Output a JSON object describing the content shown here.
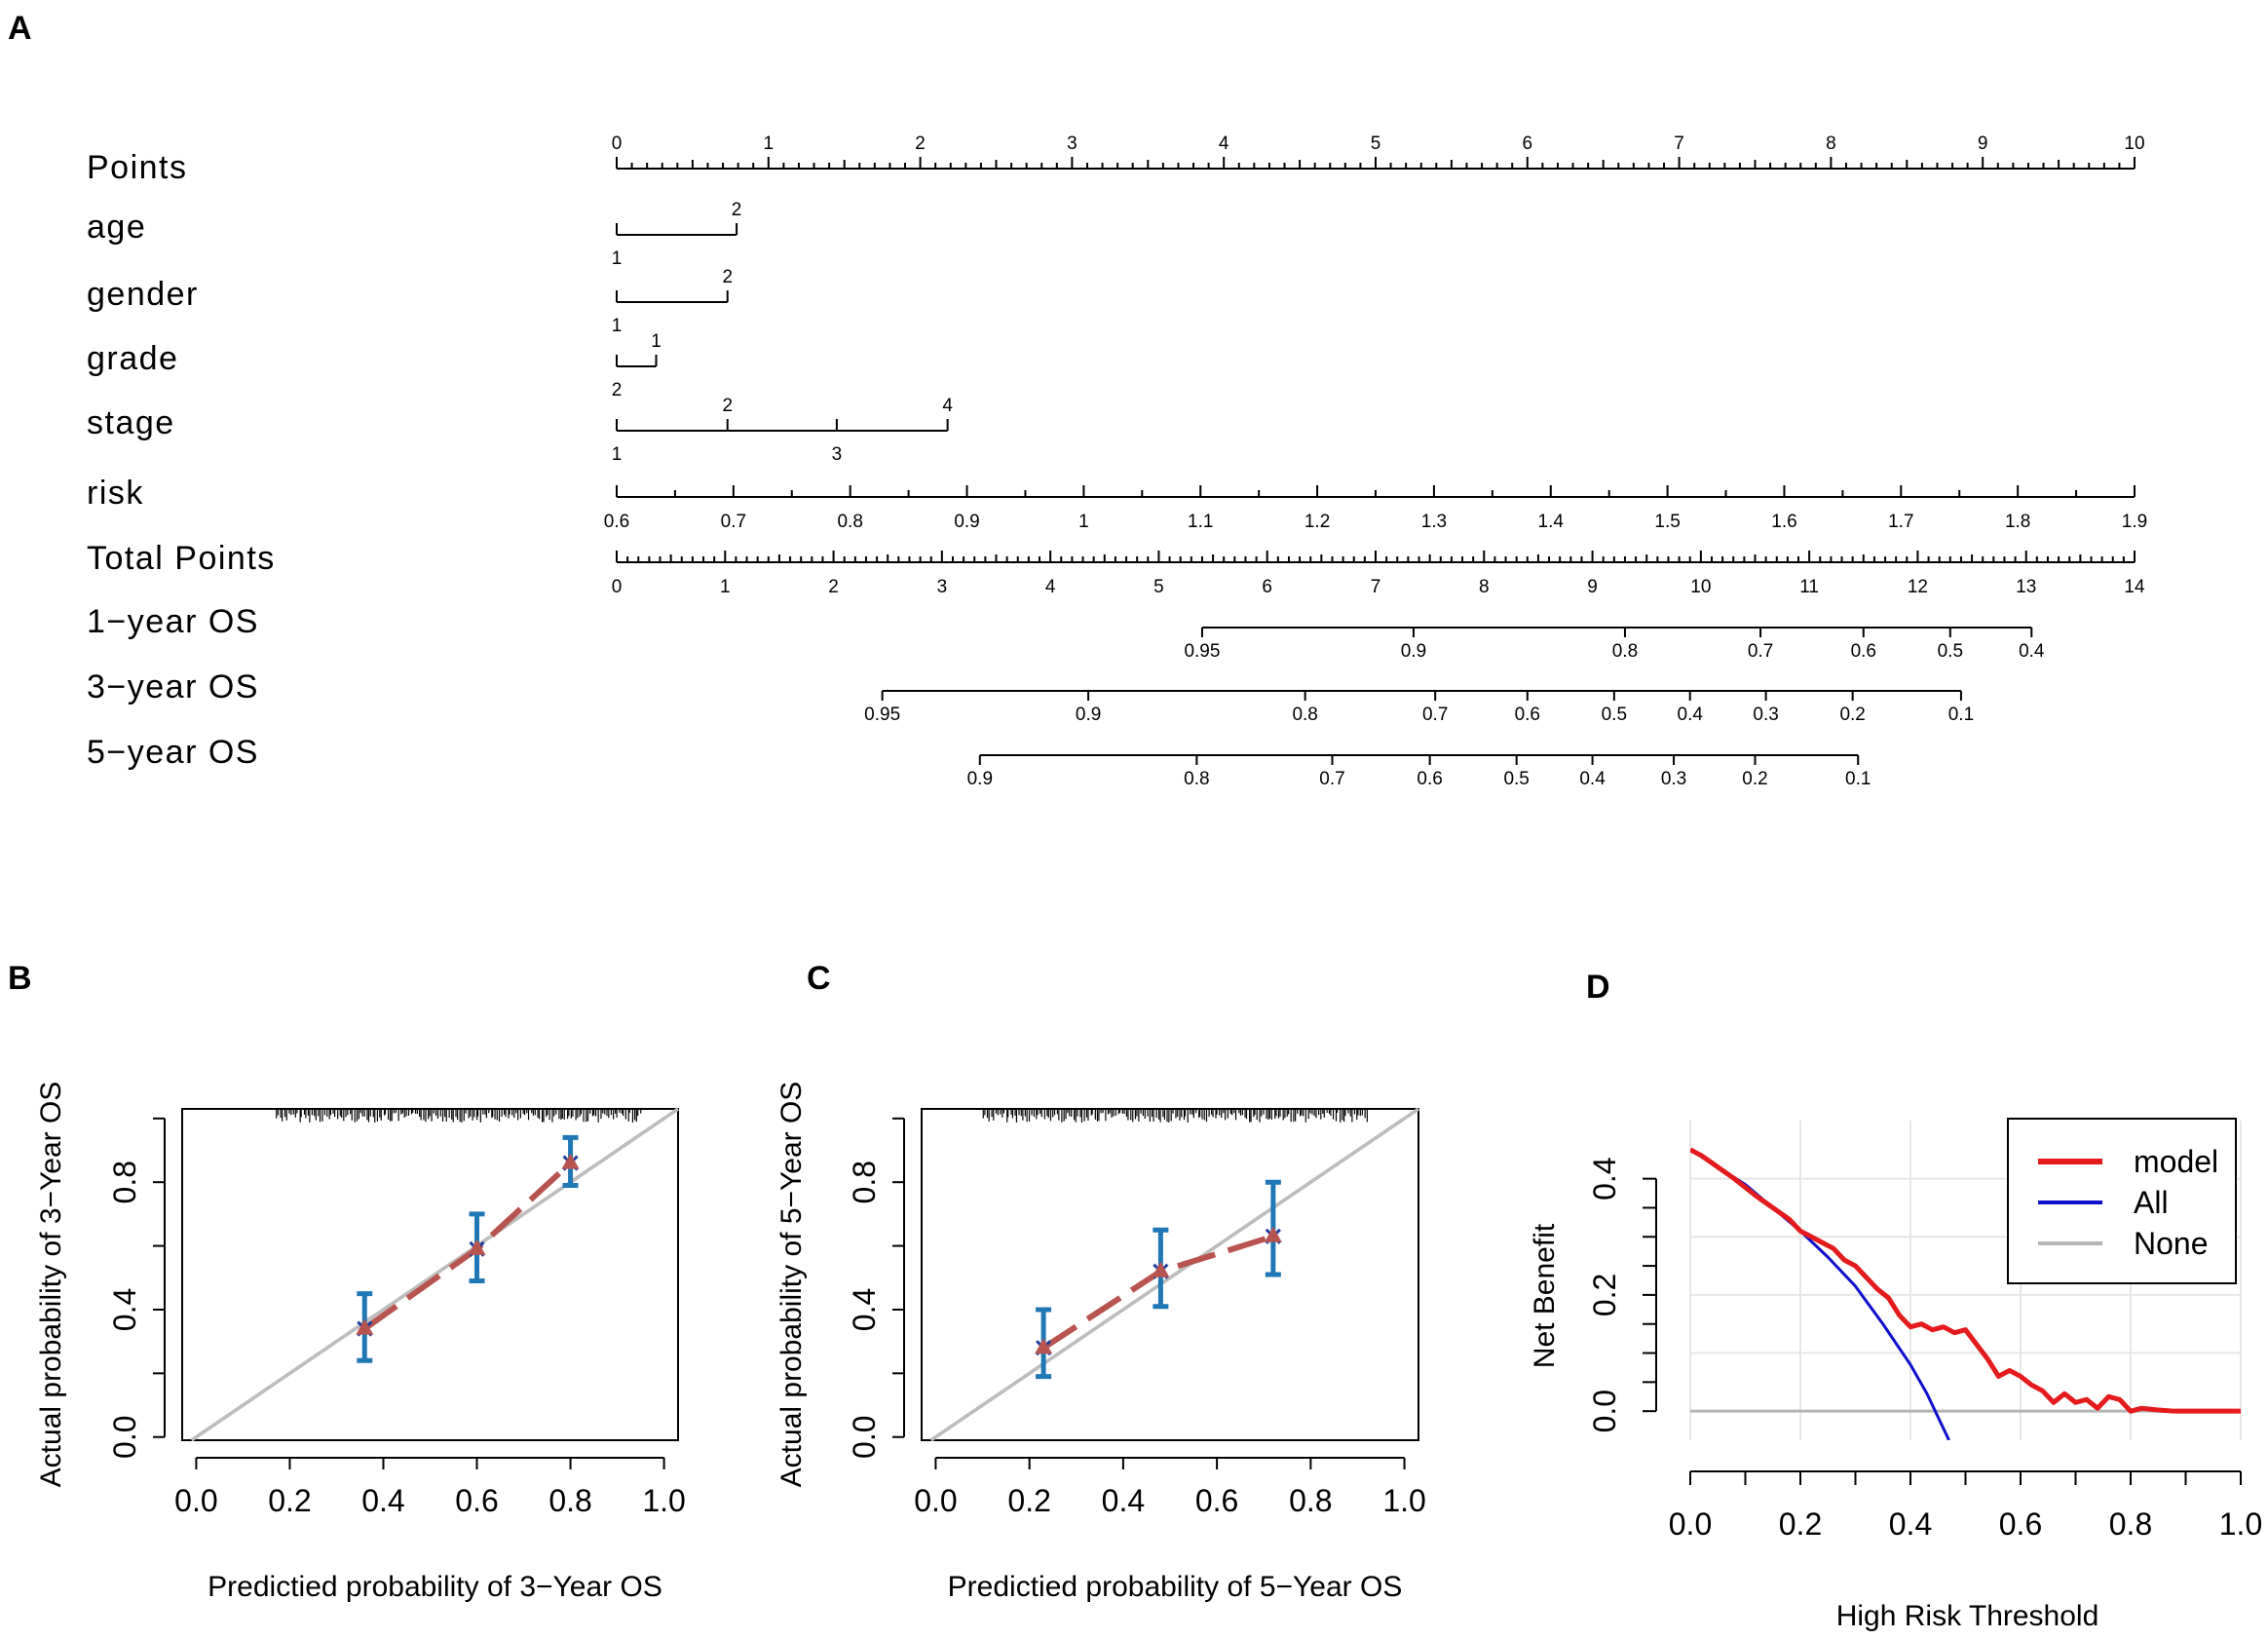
{
  "panel_labels": {
    "a": "A",
    "b": "B",
    "c": "C",
    "d": "D"
  },
  "colors": {
    "axis": "#000000",
    "calib_diag": "#BDBDBD",
    "calib_line": "#B85450",
    "calib_err": "#1F77B4",
    "calib_marker": "#1F3F9F",
    "dca_model": "#E41A1C",
    "dca_all": "#1010CC",
    "dca_none": "#B5B5B5",
    "grid": "#E6E6E6"
  },
  "chart_data": [
    {
      "panel": "A",
      "type": "nomogram",
      "rows": [
        {
          "label": "Points",
          "kind": "points",
          "range": [
            0,
            10
          ],
          "ticks": [
            "0",
            "1",
            "2",
            "3",
            "4",
            "5",
            "6",
            "7",
            "8",
            "9",
            "10"
          ]
        },
        {
          "label": "age",
          "kind": "factor",
          "levels": [
            {
              "value": "1",
              "points": 0
            },
            {
              "value": "2",
              "points": 0.79
            }
          ]
        },
        {
          "label": "gender",
          "kind": "factor",
          "levels": [
            {
              "value": "1",
              "points": 0
            },
            {
              "value": "2",
              "points": 0.73
            }
          ]
        },
        {
          "label": "grade",
          "kind": "factor",
          "levels": [
            {
              "value": "2",
              "points": 0
            },
            {
              "value": "1",
              "points": 0.26
            }
          ]
        },
        {
          "label": "stage",
          "kind": "factor",
          "levels": [
            {
              "value": "1",
              "points": 0
            },
            {
              "value": "2",
              "points": 0.73
            },
            {
              "value": "3",
              "points": 1.45
            },
            {
              "value": "4",
              "points": 2.18
            }
          ]
        },
        {
          "label": "risk",
          "kind": "continuous",
          "range": [
            0.6,
            1.9
          ],
          "ticks": [
            "0.6",
            "0.7",
            "0.8",
            "0.9",
            "1",
            "1.1",
            "1.2",
            "1.3",
            "1.4",
            "1.5",
            "1.6",
            "1.7",
            "1.8",
            "1.9"
          ]
        },
        {
          "label": "Total Points",
          "kind": "total",
          "range": [
            0,
            14
          ],
          "ticks": [
            "0",
            "1",
            "2",
            "3",
            "4",
            "5",
            "6",
            "7",
            "8",
            "9",
            "10",
            "11",
            "12",
            "13",
            "14"
          ]
        },
        {
          "label": "1−year OS",
          "kind": "outcome",
          "ticks": [
            {
              "label": "0.95",
              "total": 5.4
            },
            {
              "label": "0.9",
              "total": 7.35
            },
            {
              "label": "0.8",
              "total": 9.3
            },
            {
              "label": "0.7",
              "total": 10.55
            },
            {
              "label": "0.6",
              "total": 11.5
            },
            {
              "label": "0.5",
              "total": 12.3
            },
            {
              "label": "0.4",
              "total": 13.05
            }
          ]
        },
        {
          "label": "3−year OS",
          "kind": "outcome",
          "ticks": [
            {
              "label": "0.95",
              "total": 2.45
            },
            {
              "label": "0.9",
              "total": 4.35
            },
            {
              "label": "0.8",
              "total": 6.35
            },
            {
              "label": "0.7",
              "total": 7.55
            },
            {
              "label": "0.6",
              "total": 8.4
            },
            {
              "label": "0.5",
              "total": 9.2
            },
            {
              "label": "0.4",
              "total": 9.9
            },
            {
              "label": "0.3",
              "total": 10.6
            },
            {
              "label": "0.2",
              "total": 11.4
            },
            {
              "label": "0.1",
              "total": 12.4
            }
          ]
        },
        {
          "label": "5−year OS",
          "kind": "outcome",
          "ticks": [
            {
              "label": "0.9",
              "total": 3.35
            },
            {
              "label": "0.8",
              "total": 5.35
            },
            {
              "label": "0.7",
              "total": 6.6
            },
            {
              "label": "0.6",
              "total": 7.5
            },
            {
              "label": "0.5",
              "total": 8.3
            },
            {
              "label": "0.4",
              "total": 9.0
            },
            {
              "label": "0.3",
              "total": 9.75
            },
            {
              "label": "0.2",
              "total": 10.5
            },
            {
              "label": "0.1",
              "total": 11.45
            }
          ]
        }
      ]
    },
    {
      "panel": "B",
      "type": "calibration",
      "xlabel": "Predictied probability of 3−Year OS",
      "ylabel": "Actual probability of 3−Year OS",
      "xlim": [
        -0.03,
        1.03
      ],
      "ylim": [
        -0.01,
        1.03
      ],
      "xticks": [
        "0.0",
        "0.2",
        "0.4",
        "0.6",
        "0.8",
        "1.0"
      ],
      "yticks": [
        "0.0",
        "0.4",
        "0.8"
      ],
      "points": [
        {
          "x": 0.36,
          "y": 0.34,
          "lo": 0.24,
          "hi": 0.45
        },
        {
          "x": 0.6,
          "y": 0.59,
          "lo": 0.49,
          "hi": 0.7
        },
        {
          "x": 0.8,
          "y": 0.86,
          "lo": 0.79,
          "hi": 0.94
        }
      ],
      "rug_range": [
        0.17,
        0.95
      ]
    },
    {
      "panel": "C",
      "type": "calibration",
      "xlabel": "Predictied probability of 5−Year OS",
      "ylabel": "Actual probability of 5−Year OS",
      "xlim": [
        -0.03,
        1.03
      ],
      "ylim": [
        -0.01,
        1.03
      ],
      "xticks": [
        "0.0",
        "0.2",
        "0.4",
        "0.6",
        "0.8",
        "1.0"
      ],
      "yticks": [
        "0.0",
        "0.4",
        "0.8"
      ],
      "points": [
        {
          "x": 0.23,
          "y": 0.28,
          "lo": 0.19,
          "hi": 0.4
        },
        {
          "x": 0.48,
          "y": 0.52,
          "lo": 0.41,
          "hi": 0.65
        },
        {
          "x": 0.72,
          "y": 0.63,
          "lo": 0.51,
          "hi": 0.8
        }
      ],
      "rug_range": [
        0.1,
        0.92
      ]
    },
    {
      "panel": "D",
      "type": "line",
      "xlabel": "High Risk Threshold",
      "ylabel": "Net Benefit",
      "xlim": [
        0,
        1
      ],
      "ylim": [
        -0.05,
        0.5
      ],
      "xticks": [
        "0.0",
        "0.2",
        "0.4",
        "0.6",
        "0.8",
        "1.0"
      ],
      "yticks": [
        "0.0",
        "0.2",
        "0.4"
      ],
      "grid": true,
      "legend": "top-right",
      "series": [
        {
          "name": "model",
          "x": [
            0,
            0.02,
            0.05,
            0.08,
            0.1,
            0.12,
            0.15,
            0.18,
            0.2,
            0.22,
            0.24,
            0.26,
            0.28,
            0.3,
            0.32,
            0.34,
            0.36,
            0.38,
            0.4,
            0.42,
            0.44,
            0.46,
            0.48,
            0.5,
            0.52,
            0.54,
            0.56,
            0.58,
            0.6,
            0.62,
            0.64,
            0.66,
            0.68,
            0.7,
            0.72,
            0.74,
            0.76,
            0.78,
            0.8,
            0.82,
            0.85,
            0.88,
            0.9,
            1.0
          ],
          "y": [
            0.45,
            0.44,
            0.42,
            0.4,
            0.385,
            0.37,
            0.35,
            0.33,
            0.31,
            0.3,
            0.29,
            0.28,
            0.26,
            0.25,
            0.23,
            0.21,
            0.195,
            0.165,
            0.145,
            0.15,
            0.14,
            0.145,
            0.135,
            0.14,
            0.115,
            0.09,
            0.06,
            0.07,
            0.06,
            0.045,
            0.035,
            0.015,
            0.03,
            0.015,
            0.02,
            0.005,
            0.025,
            0.02,
            0.0,
            0.005,
            0.002,
            0.0,
            0.0,
            0.0
          ]
        },
        {
          "name": "All",
          "x": [
            0,
            0.05,
            0.1,
            0.15,
            0.2,
            0.25,
            0.3,
            0.35,
            0.4,
            0.43,
            0.45,
            0.47
          ],
          "y": [
            0.45,
            0.42,
            0.39,
            0.35,
            0.31,
            0.265,
            0.215,
            0.15,
            0.08,
            0.03,
            -0.01,
            -0.05
          ]
        },
        {
          "name": "None",
          "x": [
            0,
            1
          ],
          "y": [
            0,
            0
          ]
        }
      ]
    }
  ]
}
